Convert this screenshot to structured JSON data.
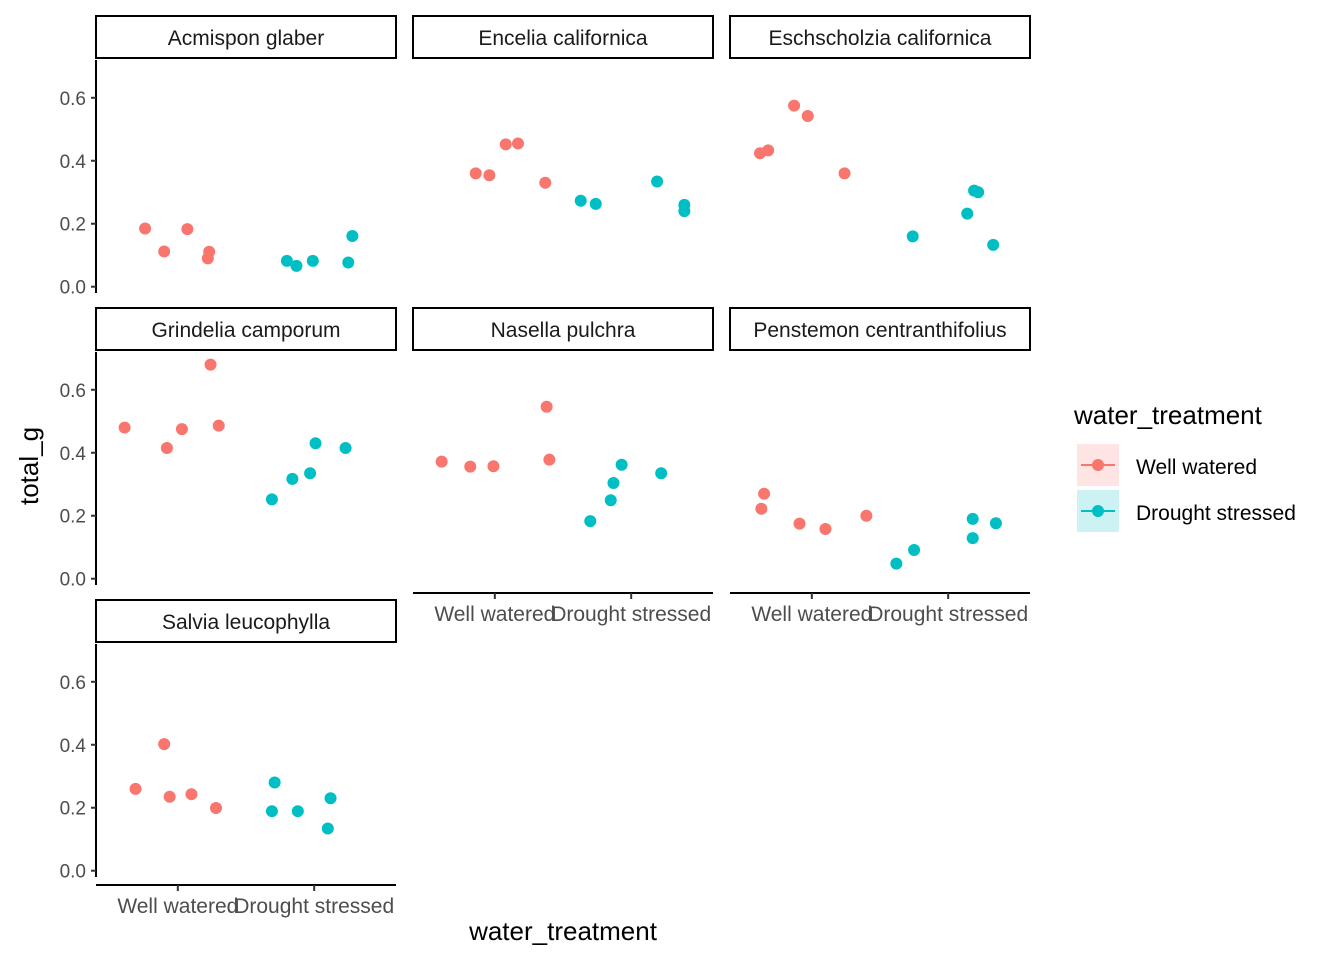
{
  "chart_data": {
    "type": "scatter",
    "xlabel": "water_treatment",
    "ylabel": "total_g",
    "categories": [
      "Well watered",
      "Drought stressed"
    ],
    "ylim": [
      -0.02,
      0.72
    ],
    "yticks": [
      0.0,
      0.2,
      0.4,
      0.6
    ],
    "ytick_labels": [
      "0.0",
      "0.2",
      "0.4",
      "0.6"
    ],
    "grid": false,
    "legend": {
      "title": "water_treatment",
      "placement": "right",
      "entries": [
        {
          "label": "Well watered",
          "color": "#F8766D"
        },
        {
          "label": "Drought stressed",
          "color": "#00BFC4"
        }
      ]
    },
    "panels": [
      {
        "title": "Acmispon glaber",
        "points": [
          {
            "x": "Well watered",
            "jitter": -0.24,
            "y": 0.185
          },
          {
            "x": "Well watered",
            "jitter": -0.1,
            "y": 0.112
          },
          {
            "x": "Well watered",
            "jitter": 0.07,
            "y": 0.183
          },
          {
            "x": "Well watered",
            "jitter": 0.22,
            "y": 0.09
          },
          {
            "x": "Well watered",
            "jitter": 0.23,
            "y": 0.111
          },
          {
            "x": "Drought stressed",
            "jitter": -0.2,
            "y": 0.082
          },
          {
            "x": "Drought stressed",
            "jitter": -0.13,
            "y": 0.066
          },
          {
            "x": "Drought stressed",
            "jitter": -0.01,
            "y": 0.082
          },
          {
            "x": "Drought stressed",
            "jitter": 0.25,
            "y": 0.077
          },
          {
            "x": "Drought stressed",
            "jitter": 0.28,
            "y": 0.161
          }
        ]
      },
      {
        "title": "Encelia californica",
        "points": [
          {
            "x": "Well watered",
            "jitter": -0.14,
            "y": 0.36
          },
          {
            "x": "Well watered",
            "jitter": -0.04,
            "y": 0.354
          },
          {
            "x": "Well watered",
            "jitter": 0.08,
            "y": 0.452
          },
          {
            "x": "Well watered",
            "jitter": 0.17,
            "y": 0.455
          },
          {
            "x": "Well watered",
            "jitter": 0.37,
            "y": 0.33
          },
          {
            "x": "Drought stressed",
            "jitter": -0.37,
            "y": 0.273
          },
          {
            "x": "Drought stressed",
            "jitter": -0.26,
            "y": 0.263
          },
          {
            "x": "Drought stressed",
            "jitter": 0.19,
            "y": 0.334
          },
          {
            "x": "Drought stressed",
            "jitter": 0.39,
            "y": 0.26
          },
          {
            "x": "Drought stressed",
            "jitter": 0.39,
            "y": 0.24
          }
        ]
      },
      {
        "title": "Eschscholzia californica",
        "points": [
          {
            "x": "Well watered",
            "jitter": -0.38,
            "y": 0.424
          },
          {
            "x": "Well watered",
            "jitter": -0.32,
            "y": 0.433
          },
          {
            "x": "Well watered",
            "jitter": -0.13,
            "y": 0.575
          },
          {
            "x": "Well watered",
            "jitter": -0.03,
            "y": 0.542
          },
          {
            "x": "Well watered",
            "jitter": 0.24,
            "y": 0.36
          },
          {
            "x": "Drought stressed",
            "jitter": -0.26,
            "y": 0.16
          },
          {
            "x": "Drought stressed",
            "jitter": 0.14,
            "y": 0.232
          },
          {
            "x": "Drought stressed",
            "jitter": 0.19,
            "y": 0.305
          },
          {
            "x": "Drought stressed",
            "jitter": 0.22,
            "y": 0.3
          },
          {
            "x": "Drought stressed",
            "jitter": 0.33,
            "y": 0.133
          }
        ]
      },
      {
        "title": "Grindelia camporum",
        "points": [
          {
            "x": "Well watered",
            "jitter": -0.39,
            "y": 0.48
          },
          {
            "x": "Well watered",
            "jitter": -0.08,
            "y": 0.415
          },
          {
            "x": "Well watered",
            "jitter": 0.03,
            "y": 0.475
          },
          {
            "x": "Well watered",
            "jitter": 0.24,
            "y": 0.68
          },
          {
            "x": "Well watered",
            "jitter": 0.3,
            "y": 0.486
          },
          {
            "x": "Drought stressed",
            "jitter": -0.31,
            "y": 0.252
          },
          {
            "x": "Drought stressed",
            "jitter": -0.16,
            "y": 0.317
          },
          {
            "x": "Drought stressed",
            "jitter": -0.03,
            "y": 0.335
          },
          {
            "x": "Drought stressed",
            "jitter": 0.01,
            "y": 0.43
          },
          {
            "x": "Drought stressed",
            "jitter": 0.23,
            "y": 0.415
          }
        ]
      },
      {
        "title": "Nasella pulchra",
        "points": [
          {
            "x": "Well watered",
            "jitter": -0.39,
            "y": 0.372
          },
          {
            "x": "Well watered",
            "jitter": -0.18,
            "y": 0.356
          },
          {
            "x": "Well watered",
            "jitter": -0.01,
            "y": 0.357
          },
          {
            "x": "Well watered",
            "jitter": 0.38,
            "y": 0.546
          },
          {
            "x": "Well watered",
            "jitter": 0.4,
            "y": 0.378
          },
          {
            "x": "Drought stressed",
            "jitter": -0.3,
            "y": 0.183
          },
          {
            "x": "Drought stressed",
            "jitter": -0.15,
            "y": 0.249
          },
          {
            "x": "Drought stressed",
            "jitter": -0.13,
            "y": 0.304
          },
          {
            "x": "Drought stressed",
            "jitter": -0.07,
            "y": 0.362
          },
          {
            "x": "Drought stressed",
            "jitter": 0.22,
            "y": 0.335
          }
        ]
      },
      {
        "title": "Penstemon centranthifolius",
        "points": [
          {
            "x": "Well watered",
            "jitter": -0.37,
            "y": 0.222
          },
          {
            "x": "Well watered",
            "jitter": -0.35,
            "y": 0.27
          },
          {
            "x": "Well watered",
            "jitter": -0.09,
            "y": 0.175
          },
          {
            "x": "Well watered",
            "jitter": 0.1,
            "y": 0.158
          },
          {
            "x": "Well watered",
            "jitter": 0.4,
            "y": 0.2
          },
          {
            "x": "Drought stressed",
            "jitter": -0.38,
            "y": 0.048
          },
          {
            "x": "Drought stressed",
            "jitter": -0.25,
            "y": 0.091
          },
          {
            "x": "Drought stressed",
            "jitter": 0.18,
            "y": 0.19
          },
          {
            "x": "Drought stressed",
            "jitter": 0.18,
            "y": 0.129
          },
          {
            "x": "Drought stressed",
            "jitter": 0.35,
            "y": 0.176
          }
        ]
      },
      {
        "title": "Salvia leucophylla",
        "points": [
          {
            "x": "Well watered",
            "jitter": -0.31,
            "y": 0.26
          },
          {
            "x": "Well watered",
            "jitter": -0.1,
            "y": 0.402
          },
          {
            "x": "Well watered",
            "jitter": -0.06,
            "y": 0.235
          },
          {
            "x": "Well watered",
            "jitter": 0.1,
            "y": 0.243
          },
          {
            "x": "Well watered",
            "jitter": 0.28,
            "y": 0.199
          },
          {
            "x": "Drought stressed",
            "jitter": -0.31,
            "y": 0.189
          },
          {
            "x": "Drought stressed",
            "jitter": -0.29,
            "y": 0.28
          },
          {
            "x": "Drought stressed",
            "jitter": -0.12,
            "y": 0.189
          },
          {
            "x": "Drought stressed",
            "jitter": 0.1,
            "y": 0.134
          },
          {
            "x": "Drought stressed",
            "jitter": 0.12,
            "y": 0.23
          }
        ]
      }
    ]
  }
}
